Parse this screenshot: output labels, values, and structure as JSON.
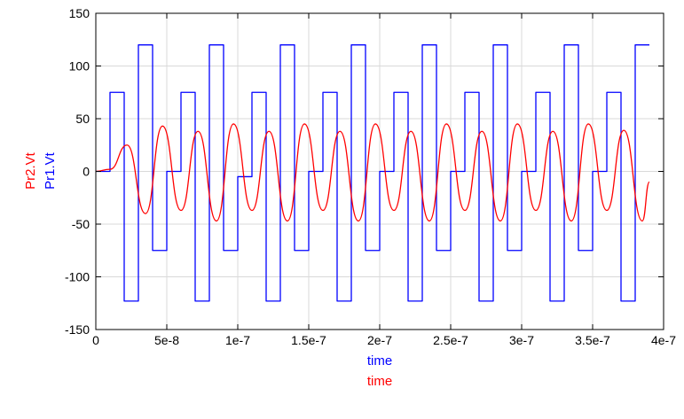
{
  "chart_data": {
    "type": "line",
    "xlabel": [
      "time",
      "time"
    ],
    "ylabels": [
      "Pr2.Vt",
      "Pr1.Vt"
    ],
    "xlim": [
      0,
      4e-07
    ],
    "ylim": [
      -150,
      150
    ],
    "grid": true,
    "xticks": [
      0,
      5e-08,
      1e-07,
      1.5e-07,
      2e-07,
      2.5e-07,
      3e-07,
      3.5e-07,
      4e-07
    ],
    "xtick_labels": [
      "0",
      "5e-8",
      "1e-7",
      "1.5e-7",
      "2e-7",
      "2.5e-7",
      "3e-7",
      "3.5e-7",
      "4e-7"
    ],
    "yticks": [
      -150,
      -100,
      -50,
      0,
      50,
      100,
      150
    ],
    "ytick_labels": [
      "-150",
      "-100",
      "-50",
      "0",
      "50",
      "100",
      "150"
    ],
    "series": [
      {
        "name": "Pr1.Vt",
        "color": "#0000ff",
        "style": "step",
        "x": [
          0,
          1e-08,
          1e-08,
          2e-08,
          2e-08,
          3e-08,
          3e-08,
          4e-08,
          4e-08,
          5e-08,
          5e-08,
          6e-08,
          6e-08,
          7e-08,
          7e-08,
          8e-08,
          8e-08,
          9e-08,
          9e-08,
          1e-07,
          1e-07,
          1.1e-07,
          1.1e-07,
          1.2e-07,
          1.2e-07,
          1.3e-07,
          1.3e-07,
          1.4e-07,
          1.4e-07,
          1.5e-07,
          1.5e-07,
          1.6e-07,
          1.6e-07,
          1.7e-07,
          1.7e-07,
          1.8e-07,
          1.8e-07,
          1.9e-07,
          1.9e-07,
          2e-07,
          2e-07,
          2.1e-07,
          2.1e-07,
          2.2e-07,
          2.2e-07,
          2.3e-07,
          2.3e-07,
          2.4e-07,
          2.4e-07,
          2.5e-07,
          2.5e-07,
          2.6e-07,
          2.6e-07,
          2.7e-07,
          2.7e-07,
          2.8e-07,
          2.8e-07,
          2.9e-07,
          2.9e-07,
          3e-07,
          3e-07,
          3.1e-07,
          3.1e-07,
          3.2e-07,
          3.2e-07,
          3.3e-07,
          3.3e-07,
          3.4e-07,
          3.4e-07,
          3.5e-07,
          3.5e-07,
          3.6e-07,
          3.6e-07,
          3.7e-07,
          3.7e-07,
          3.8e-07,
          3.8e-07,
          3.9e-07
        ],
        "y": [
          0,
          0,
          75,
          75,
          -123,
          -123,
          120,
          120,
          -75,
          -75,
          0,
          0,
          75,
          75,
          -123,
          -123,
          120,
          120,
          -75,
          -75,
          -5,
          -5,
          75,
          75,
          -123,
          -123,
          120,
          120,
          -75,
          -75,
          0,
          0,
          75,
          75,
          -123,
          -123,
          120,
          120,
          -75,
          -75,
          0,
          0,
          75,
          75,
          -123,
          -123,
          120,
          120,
          -75,
          -75,
          0,
          0,
          75,
          75,
          -123,
          -123,
          120,
          120,
          -75,
          -75,
          0,
          0,
          75,
          75,
          -123,
          -123,
          120,
          120,
          -75,
          -75,
          0,
          0,
          75,
          75,
          -123,
          -123,
          120,
          120
        ]
      },
      {
        "name": "Pr2.Vt",
        "color": "#ff0000",
        "style": "smooth",
        "x": [
          0,
          1e-08,
          2.2e-08,
          3.5e-08,
          4.7e-08,
          6e-08,
          7.2e-08,
          8.5e-08,
          9.7e-08,
          1.1e-07,
          1.22e-07,
          1.35e-07,
          1.47e-07,
          1.6e-07,
          1.72e-07,
          1.85e-07,
          1.97e-07,
          2.1e-07,
          2.22e-07,
          2.35e-07,
          2.47e-07,
          2.6e-07,
          2.72e-07,
          2.85e-07,
          2.97e-07,
          3.1e-07,
          3.22e-07,
          3.35e-07,
          3.47e-07,
          3.6e-07,
          3.72e-07,
          3.85e-07,
          3.9e-07
        ],
        "y": [
          0,
          2,
          25,
          -40,
          43,
          -37,
          38,
          -47,
          45,
          -37,
          38,
          -47,
          45,
          -37,
          38,
          -47,
          45,
          -37,
          38,
          -47,
          45,
          -37,
          38,
          -47,
          45,
          -37,
          38,
          -47,
          45,
          -37,
          39,
          -47,
          -10
        ]
      }
    ]
  }
}
